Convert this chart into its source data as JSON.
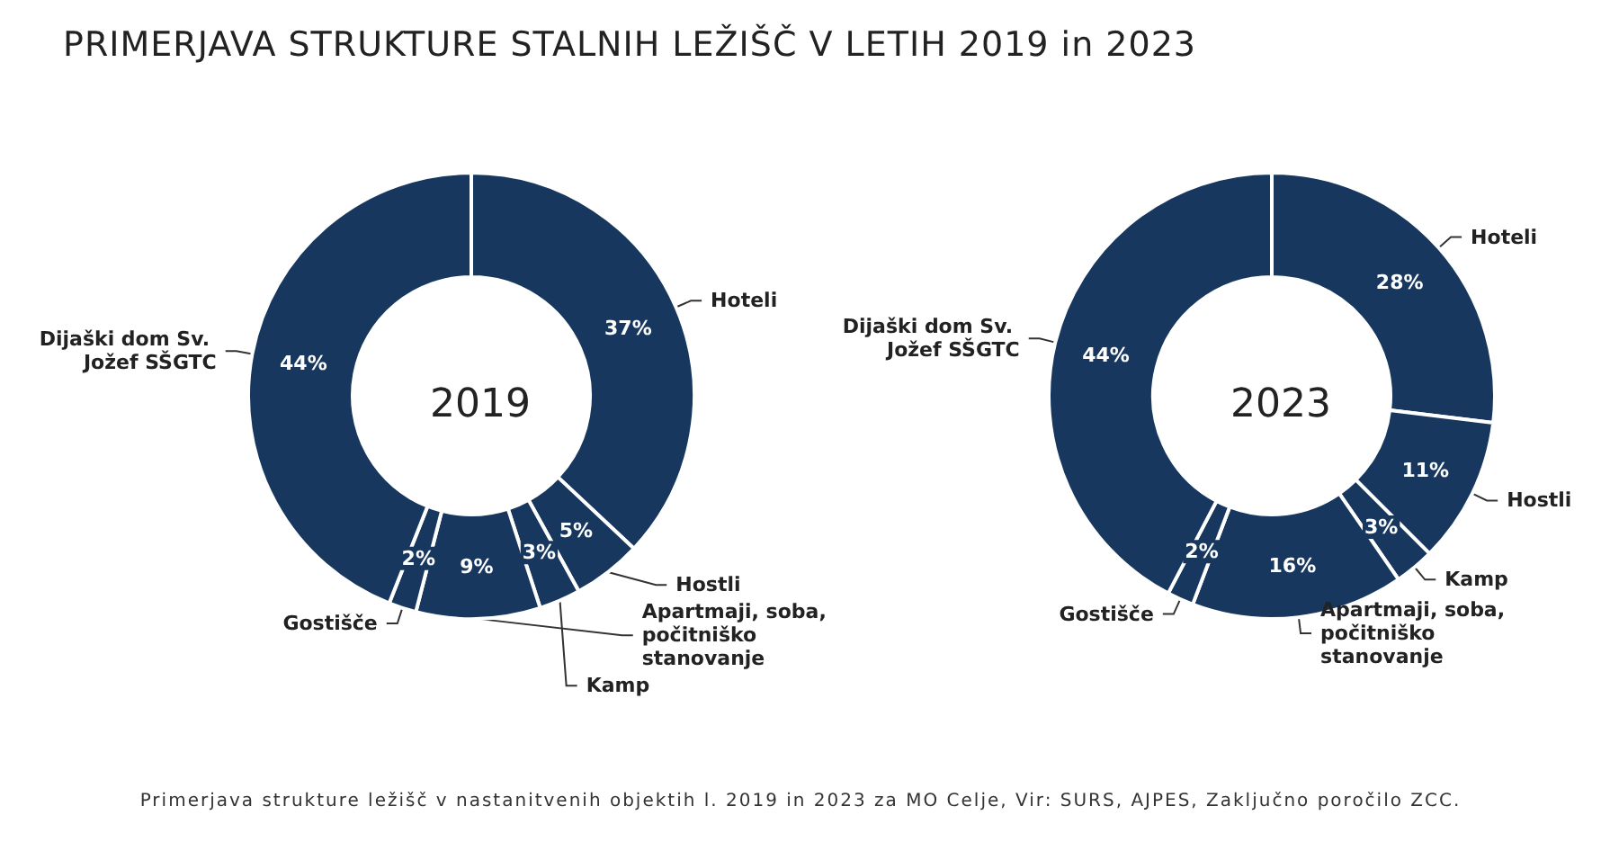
{
  "chart_data": [
    {
      "type": "donut",
      "title": "PRIMERJAVA STRUKTURE STALNIH LEŽIŠČ V LETIH 2019 in 2023",
      "subtitle": "2019",
      "categories": [
        "Hoteli",
        "Hostli",
        "Kamp",
        "Apartmaji, soba, počitniško stanovanje",
        "Gostišče",
        "Dijaški dom Sv. Jožef SŠGTC"
      ],
      "values": [
        37,
        5,
        3,
        9,
        2,
        44
      ],
      "colors": [
        "#17375e",
        "#17375e",
        "#17375e",
        "#17375e",
        "#17375e",
        "#17375e"
      ],
      "value_labels": [
        "37%",
        "5%",
        "3%",
        "9%",
        "2%",
        "44%"
      ],
      "legend": false
    },
    {
      "type": "donut",
      "subtitle": "2023",
      "categories": [
        "Hoteli",
        "Hostli",
        "Kamp",
        "Apartmaji, soba, počitniško stanovanje",
        "Gostišče",
        "Dijaški dom Sv. Jožef SŠGTC"
      ],
      "values": [
        28,
        11,
        3,
        16,
        2,
        44
      ],
      "colors": [
        "#17375e",
        "#17375e",
        "#17375e",
        "#17375e",
        "#17375e",
        "#17375e"
      ],
      "value_labels": [
        "28%",
        "11%",
        "3%",
        "16%",
        "2%",
        "44%"
      ],
      "legend": false,
      "annotations": [
        "Primerjava strukture ležišč v nastanitvenih objektih l. 2019 in 2023 za MO Celje, Vir: SURS, AJPES, Zaključno poročilo ZCC."
      ]
    }
  ]
}
